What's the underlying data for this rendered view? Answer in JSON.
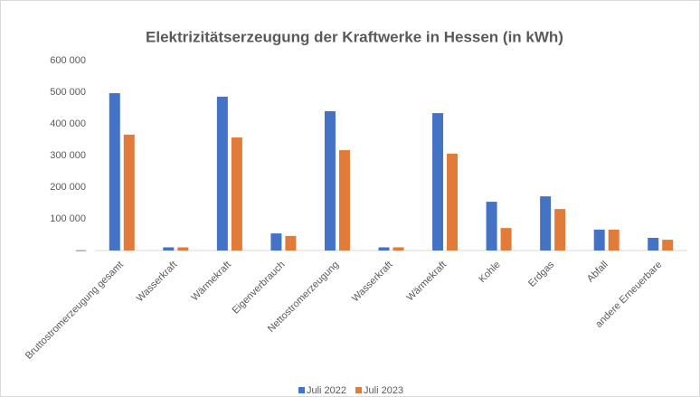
{
  "chart_data": {
    "type": "bar",
    "title": "Elektrizitätserzeugung der Kraftwerke in Hessen (in kWh)",
    "categories": [
      "Bruttostromerzeugung gesamt",
      "Wasserkraft",
      "Wärmekraft",
      "Eigenverbrauch",
      "Nettostromerzeugung",
      "Wasserkraft",
      "Wärmekraft",
      "Kohle",
      "Erdgas",
      "Abfall",
      "andere Erneuerbare"
    ],
    "series": [
      {
        "name": "Juli 2022",
        "color": "#4472c4",
        "values": [
          497000,
          10000,
          486000,
          54000,
          440000,
          10000,
          434000,
          154000,
          171000,
          66000,
          40000
        ]
      },
      {
        "name": "Juli 2023",
        "color": "#e07b39",
        "values": [
          366000,
          10000,
          357000,
          46000,
          317000,
          10000,
          306000,
          71000,
          131000,
          66000,
          34000
        ]
      }
    ],
    "ylim": [
      0,
      600000
    ],
    "yticks": [
      {
        "value": 0,
        "label": "—"
      },
      {
        "value": 100000,
        "label": "100 000"
      },
      {
        "value": 200000,
        "label": "200 000"
      },
      {
        "value": 300000,
        "label": "300 000"
      },
      {
        "value": 400000,
        "label": "400 000"
      },
      {
        "value": 500000,
        "label": "500 000"
      },
      {
        "value": 600000,
        "label": "600 000"
      }
    ],
    "legend": "bottom"
  }
}
